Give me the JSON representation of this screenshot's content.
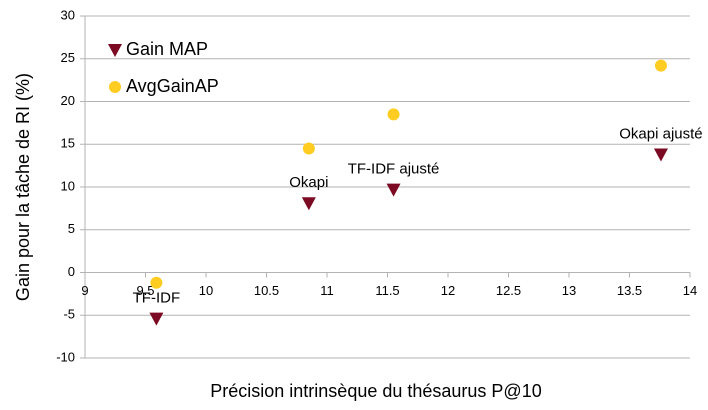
{
  "chart_data": {
    "type": "scatter",
    "x_label": "Précision intrinsèque du thésaurus P@10",
    "y_label": "Gain pour la tâche de RI (%)",
    "x": [
      9.59,
      10.85,
      11.55,
      13.76
    ],
    "point_labels": [
      "TF-IDF",
      "Okapi",
      "TF-IDF ajusté",
      "Okapi ajusté"
    ],
    "series": [
      {
        "name": "Gain MAP",
        "color": "#7b0a22",
        "marker": "triangle-down",
        "values": [
          -5.4,
          8.1,
          9.7,
          13.8
        ]
      },
      {
        "name": "AvgGainAP",
        "color": "#ffcc22",
        "marker": "circle",
        "values": [
          -1.2,
          14.5,
          18.5,
          24.2
        ]
      }
    ],
    "xlim": [
      9,
      14
    ],
    "xticks": [
      9,
      9.5,
      10,
      10.5,
      11,
      11.5,
      12,
      12.5,
      13,
      13.5,
      14
    ],
    "ylim": [
      -10,
      30
    ],
    "yticks": [
      -10,
      -5,
      0,
      5,
      10,
      15,
      20,
      25,
      30
    ],
    "grid": true,
    "legend": "top-left"
  }
}
